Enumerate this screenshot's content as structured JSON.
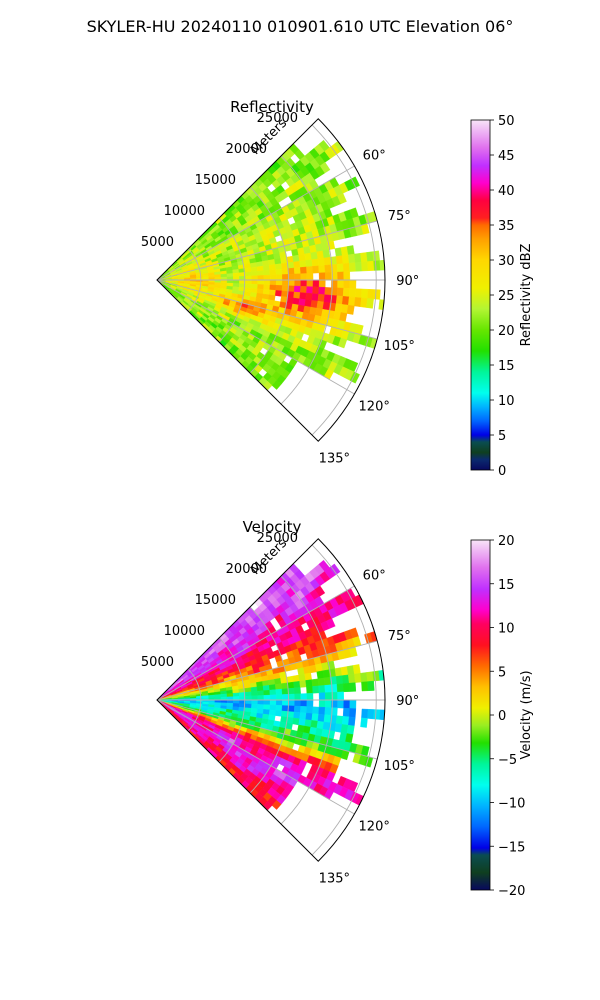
{
  "page_title": "SKYLER-HU  20240110  010901.610 UTC Elevation 06°",
  "chart_data": [
    {
      "type": "heatmap",
      "subtype": "polar-sector (PPI radar)",
      "title": "Reflectivity",
      "range_axis_label": "Meters",
      "range_ticks": [
        "5000",
        "10000",
        "15000",
        "20000",
        "25000"
      ],
      "range_tick_values": [
        5000,
        10000,
        15000,
        20000,
        25000
      ],
      "azimuth_tick_labels": [
        "60°",
        "75°",
        "90°",
        "105°",
        "120°",
        "135°"
      ],
      "azimuth_tick_values": [
        60,
        75,
        90,
        105,
        120,
        135
      ],
      "azimuth_range": [
        45,
        135
      ],
      "range_max": 26000,
      "grid": true,
      "colorbar": {
        "label": "Reflectivity dBZ",
        "range": [
          0,
          50
        ],
        "ticks": [
          "0",
          "5",
          "10",
          "15",
          "20",
          "25",
          "30",
          "35",
          "40",
          "45",
          "50"
        ]
      },
      "features": [
        {
          "az_center": 95,
          "range_center": 17000,
          "az_width": 28,
          "range_width": 14000,
          "value": 38
        },
        {
          "az_center": 108,
          "range_center": 10000,
          "az_width": 14,
          "range_width": 8000,
          "value": 36
        },
        {
          "az_center": 90,
          "range_center": 4000,
          "az_width": 60,
          "range_width": 7000,
          "value": 30
        },
        {
          "az_center": 70,
          "range_center": 14000,
          "az_width": 25,
          "range_width": 18000,
          "value": 24
        },
        {
          "az_center": 120,
          "range_center": 16000,
          "az_width": 20,
          "range_width": 12000,
          "value": 22
        }
      ]
    },
    {
      "type": "heatmap",
      "subtype": "polar-sector (PPI radar)",
      "title": "Velocity",
      "range_axis_label": "Meters",
      "range_ticks": [
        "5000",
        "10000",
        "15000",
        "20000",
        "25000"
      ],
      "range_tick_values": [
        5000,
        10000,
        15000,
        20000,
        25000
      ],
      "azimuth_tick_labels": [
        "60°",
        "75°",
        "90°",
        "105°",
        "120°",
        "135°"
      ],
      "azimuth_tick_values": [
        60,
        75,
        90,
        105,
        120,
        135
      ],
      "azimuth_range": [
        45,
        135
      ],
      "range_max": 26000,
      "grid": true,
      "colorbar": {
        "label": "Velocity (m/s)",
        "range": [
          -20,
          20
        ],
        "ticks": [
          "−20",
          "−15",
          "−10",
          "−5",
          "0",
          "5",
          "10",
          "15",
          "20"
        ]
      },
      "azimuth_profile": [
        {
          "az": 48,
          "value": 16
        },
        {
          "az": 58,
          "value": 13
        },
        {
          "az": 68,
          "value": 9
        },
        {
          "az": 78,
          "value": 2
        },
        {
          "az": 86,
          "value": -5
        },
        {
          "az": 92,
          "value": -11
        },
        {
          "az": 99,
          "value": -7
        },
        {
          "az": 106,
          "value": -3
        },
        {
          "az": 114,
          "value": 11
        },
        {
          "az": 122,
          "value": 14
        },
        {
          "az": 132,
          "value": 9
        }
      ]
    }
  ]
}
